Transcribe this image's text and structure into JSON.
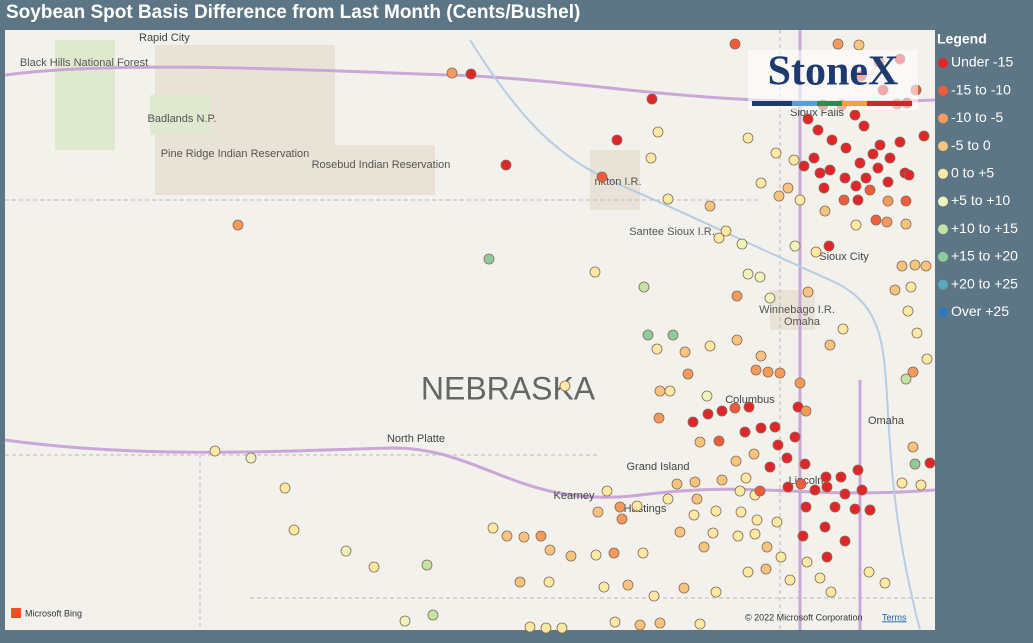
{
  "header": {
    "title": "Soybean Spot Basis Difference from Last Month (Cents/Bushel)"
  },
  "legend": {
    "title": "Legend",
    "items": [
      {
        "label": "Under -15",
        "color": "#e0262b"
      },
      {
        "label": "-15 to -10",
        "color": "#ee5c3e"
      },
      {
        "label": "-10 to -5",
        "color": "#f39a5c"
      },
      {
        "label": "-5 to 0",
        "color": "#f7c47f"
      },
      {
        "label": "0 to +5",
        "color": "#fbe9a4"
      },
      {
        "label": "+5 to +10",
        "color": "#eef4bd"
      },
      {
        "label": "+10 to +15",
        "color": "#c4e3a6"
      },
      {
        "label": "+15 to +20",
        "color": "#8ecb9c"
      },
      {
        "label": "+20 to +25",
        "color": "#5ba7be"
      },
      {
        "label": "Over +25",
        "color": "#2e78bd"
      }
    ]
  },
  "map": {
    "labels": [
      "Rapid City",
      "Black Hills National Forest",
      "Badlands N.P.",
      "Pine Ridge Indian Reservation",
      "Rosebud Indian Reservation",
      "nkton I.R.",
      "Santee Sioux I.R.",
      "Sioux Falls",
      "Sioux City",
      "Winnebago I.R.",
      "Omaha",
      "Omaha",
      "NEBRASKA",
      "North Platte",
      "Columbus",
      "Grand Island",
      "Kearney",
      "Hastings",
      "Lincoln"
    ],
    "logo": "StoneX",
    "provider": "Microsoft Bing",
    "copyright": "© 2022 Microsoft Corporation",
    "terms": "Terms"
  }
}
